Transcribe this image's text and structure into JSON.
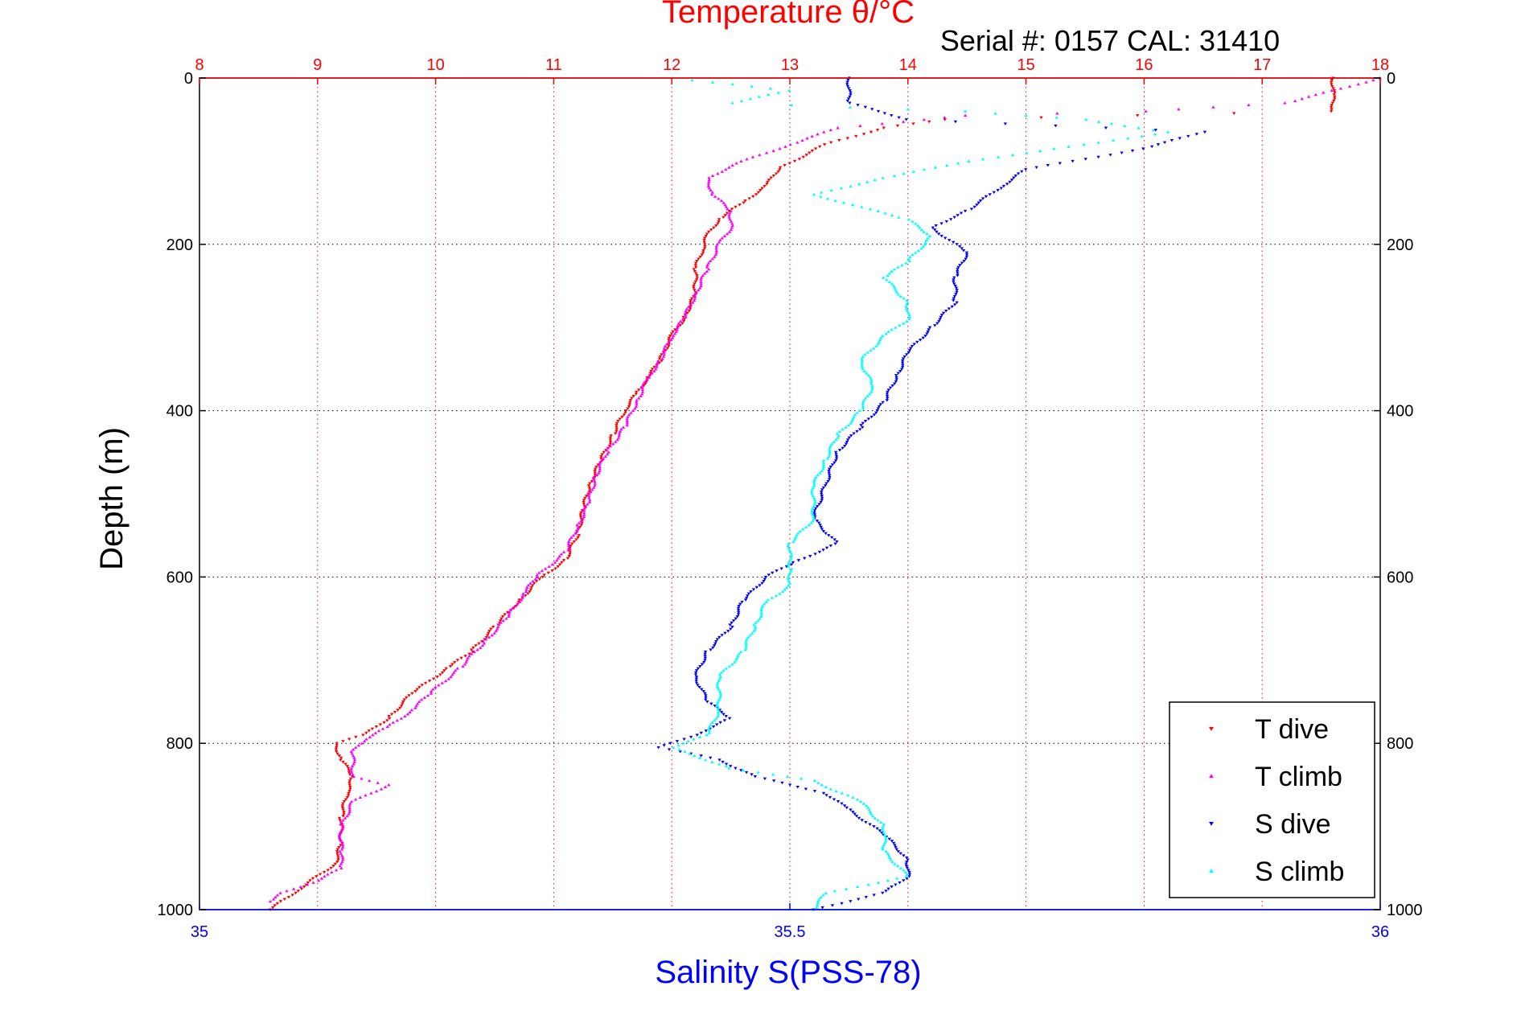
{
  "chart_data": {
    "type": "scatter",
    "title": "Temperature θ/°C",
    "subtitle": "Serial #: 0157  CAL: 31410",
    "xlabel_bottom": "Salinity S(PSS-78)",
    "ylabel": "Depth (m)",
    "temperature_axis": {
      "range": [
        8,
        18
      ],
      "ticks": [
        "8",
        "9",
        "10",
        "11",
        "12",
        "13",
        "14",
        "15",
        "16",
        "17",
        "18"
      ]
    },
    "salinity_axis": {
      "range": [
        35,
        36
      ],
      "ticks": [
        "35",
        "35.5",
        "36"
      ]
    },
    "depth_axis": {
      "range": [
        0,
        1000
      ],
      "reversed": true,
      "ticks": [
        "0",
        "200",
        "400",
        "600",
        "800",
        "1000"
      ]
    },
    "grid": true,
    "legend_position": "bottom-right",
    "colors": {
      "t_dive": "#ff0000",
      "t_climb": "#ff00ff",
      "s_dive": "#0000ff",
      "s_climb": "#00ffff"
    },
    "series": [
      {
        "name": "T dive",
        "axis": "temperature",
        "marker": "triangle-down",
        "points": [
          [
            17.6,
            0
          ],
          [
            17.6,
            20
          ],
          [
            17.6,
            40
          ],
          [
            14.3,
            50
          ],
          [
            13.8,
            60
          ],
          [
            13.3,
            80
          ],
          [
            12.9,
            110
          ],
          [
            12.8,
            130
          ],
          [
            12.6,
            150
          ],
          [
            12.4,
            170
          ],
          [
            12.3,
            190
          ],
          [
            12.25,
            210
          ],
          [
            12.2,
            230
          ],
          [
            12.2,
            260
          ],
          [
            12.1,
            290
          ],
          [
            12.0,
            310
          ],
          [
            11.9,
            340
          ],
          [
            11.8,
            360
          ],
          [
            11.7,
            380
          ],
          [
            11.6,
            400
          ],
          [
            11.5,
            430
          ],
          [
            11.4,
            460
          ],
          [
            11.3,
            490
          ],
          [
            11.25,
            520
          ],
          [
            11.2,
            550
          ],
          [
            11.1,
            580
          ],
          [
            10.9,
            600
          ],
          [
            10.7,
            630
          ],
          [
            10.5,
            660
          ],
          [
            10.3,
            690
          ],
          [
            10.1,
            710
          ],
          [
            9.8,
            740
          ],
          [
            9.6,
            770
          ],
          [
            9.4,
            790
          ],
          [
            9.15,
            800
          ],
          [
            9.2,
            820
          ],
          [
            9.3,
            840
          ],
          [
            9.25,
            860
          ],
          [
            9.2,
            890
          ],
          [
            9.2,
            920
          ],
          [
            9.15,
            945
          ],
          [
            9.0,
            960
          ],
          [
            8.8,
            980
          ],
          [
            8.6,
            1000
          ]
        ]
      },
      {
        "name": "T climb",
        "axis": "temperature",
        "marker": "triangle-up",
        "points": [
          [
            18.0,
            0
          ],
          [
            17.2,
            30
          ],
          [
            16.0,
            40
          ],
          [
            14.5,
            45
          ],
          [
            13.4,
            60
          ],
          [
            13.0,
            80
          ],
          [
            12.6,
            100
          ],
          [
            12.3,
            120
          ],
          [
            12.35,
            140
          ],
          [
            12.5,
            160
          ],
          [
            12.5,
            180
          ],
          [
            12.4,
            200
          ],
          [
            12.3,
            230
          ],
          [
            12.2,
            260
          ],
          [
            12.1,
            290
          ],
          [
            12.0,
            310
          ],
          [
            11.9,
            340
          ],
          [
            11.8,
            360
          ],
          [
            11.7,
            390
          ],
          [
            11.6,
            420
          ],
          [
            11.45,
            450
          ],
          [
            11.35,
            480
          ],
          [
            11.3,
            510
          ],
          [
            11.2,
            540
          ],
          [
            11.1,
            570
          ],
          [
            10.85,
            600
          ],
          [
            10.75,
            620
          ],
          [
            10.6,
            650
          ],
          [
            10.4,
            680
          ],
          [
            10.2,
            710
          ],
          [
            9.95,
            740
          ],
          [
            9.8,
            760
          ],
          [
            9.6,
            780
          ],
          [
            9.4,
            795
          ],
          [
            9.3,
            810
          ],
          [
            9.3,
            840
          ],
          [
            9.6,
            850
          ],
          [
            9.3,
            870
          ],
          [
            9.2,
            900
          ],
          [
            9.2,
            930
          ],
          [
            9.2,
            950
          ],
          [
            9.0,
            965
          ],
          [
            8.7,
            980
          ],
          [
            8.6,
            990
          ]
        ]
      },
      {
        "name": "S dive",
        "axis": "salinity",
        "marker": "triangle-down",
        "points": [
          [
            35.55,
            0
          ],
          [
            35.55,
            30
          ],
          [
            35.6,
            50
          ],
          [
            35.85,
            65
          ],
          [
            35.8,
            85
          ],
          [
            35.7,
            110
          ],
          [
            35.68,
            130
          ],
          [
            35.65,
            160
          ],
          [
            35.62,
            180
          ],
          [
            35.65,
            210
          ],
          [
            35.64,
            240
          ],
          [
            35.64,
            270
          ],
          [
            35.62,
            300
          ],
          [
            35.6,
            330
          ],
          [
            35.59,
            360
          ],
          [
            35.58,
            390
          ],
          [
            35.56,
            420
          ],
          [
            35.54,
            450
          ],
          [
            35.53,
            490
          ],
          [
            35.52,
            530
          ],
          [
            35.54,
            560
          ],
          [
            35.5,
            585
          ],
          [
            35.48,
            600
          ],
          [
            35.46,
            630
          ],
          [
            35.45,
            660
          ],
          [
            35.43,
            690
          ],
          [
            35.42,
            720
          ],
          [
            35.43,
            750
          ],
          [
            35.45,
            770
          ],
          [
            35.42,
            790
          ],
          [
            35.39,
            805
          ],
          [
            35.44,
            820
          ],
          [
            35.47,
            840
          ],
          [
            35.53,
            860
          ],
          [
            35.55,
            880
          ],
          [
            35.58,
            910
          ],
          [
            35.6,
            940
          ],
          [
            35.6,
            960
          ],
          [
            35.58,
            980
          ],
          [
            35.52,
            1000
          ]
        ]
      },
      {
        "name": "S climb",
        "axis": "salinity",
        "marker": "triangle-up",
        "points": [
          [
            35.4,
            0
          ],
          [
            35.5,
            15
          ],
          [
            35.45,
            30
          ],
          [
            35.65,
            40
          ],
          [
            35.75,
            50
          ],
          [
            35.82,
            65
          ],
          [
            35.75,
            80
          ],
          [
            35.65,
            100
          ],
          [
            35.58,
            120
          ],
          [
            35.52,
            140
          ],
          [
            35.6,
            170
          ],
          [
            35.62,
            190
          ],
          [
            35.6,
            220
          ],
          [
            35.58,
            240
          ],
          [
            35.6,
            270
          ],
          [
            35.6,
            290
          ],
          [
            35.58,
            310
          ],
          [
            35.56,
            340
          ],
          [
            35.57,
            370
          ],
          [
            35.56,
            400
          ],
          [
            35.54,
            430
          ],
          [
            35.53,
            460
          ],
          [
            35.52,
            490
          ],
          [
            35.52,
            530
          ],
          [
            35.5,
            560
          ],
          [
            35.5,
            590
          ],
          [
            35.5,
            610
          ],
          [
            35.48,
            630
          ],
          [
            35.47,
            660
          ],
          [
            35.46,
            690
          ],
          [
            35.44,
            720
          ],
          [
            35.44,
            760
          ],
          [
            35.43,
            790
          ],
          [
            35.4,
            805
          ],
          [
            35.45,
            830
          ],
          [
            35.52,
            845
          ],
          [
            35.56,
            870
          ],
          [
            35.58,
            900
          ],
          [
            35.58,
            930
          ],
          [
            35.6,
            960
          ],
          [
            35.53,
            980
          ],
          [
            35.52,
            1000
          ]
        ]
      }
    ],
    "legend": [
      "T dive",
      "T climb",
      "S dive",
      "S climb"
    ]
  }
}
